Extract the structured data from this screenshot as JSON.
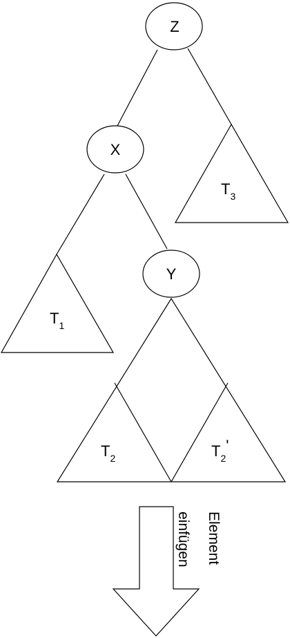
{
  "nodes": {
    "z": {
      "label": "Z"
    },
    "x": {
      "label": "X"
    },
    "y": {
      "label": "Y"
    }
  },
  "subtrees": {
    "t1": {
      "base": "T",
      "sub": "1",
      "suffix": ""
    },
    "t2": {
      "base": "T",
      "sub": "2",
      "suffix": ""
    },
    "t2_prime": {
      "base": "T",
      "sub": "2",
      "suffix": "'"
    },
    "t3": {
      "base": "T",
      "sub": "3",
      "suffix": ""
    }
  },
  "arrow": {
    "line1": "Element",
    "line2": "einfügen"
  }
}
